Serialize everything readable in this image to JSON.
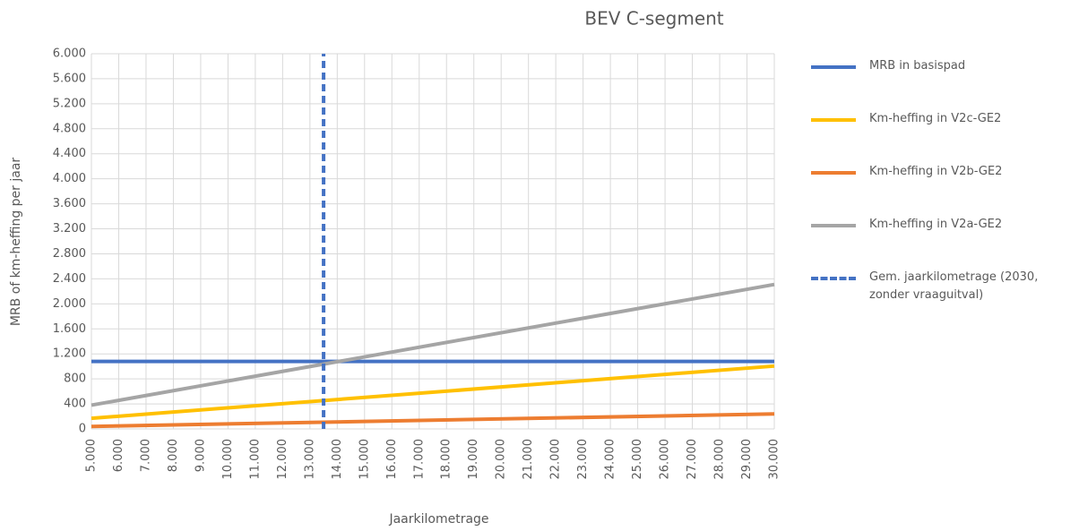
{
  "chart_data": {
    "type": "line",
    "title": "BEV C-segment",
    "xlabel": "Jaarkilometrage",
    "ylabel": "MRB of km-heffing per jaar",
    "xlim": [
      5000,
      30000
    ],
    "xticks": [
      {
        "value": 5000,
        "label": "5.000"
      },
      {
        "value": 6000,
        "label": "6.000"
      },
      {
        "value": 7000,
        "label": "7.000"
      },
      {
        "value": 8000,
        "label": "8.000"
      },
      {
        "value": 9000,
        "label": "9.000"
      },
      {
        "value": 10000,
        "label": "10.000"
      },
      {
        "value": 11000,
        "label": "11.000"
      },
      {
        "value": 12000,
        "label": "12.000"
      },
      {
        "value": 13000,
        "label": "13.000"
      },
      {
        "value": 14000,
        "label": "14.000"
      },
      {
        "value": 15000,
        "label": "15.000"
      },
      {
        "value": 16000,
        "label": "16.000"
      },
      {
        "value": 17000,
        "label": "17.000"
      },
      {
        "value": 18000,
        "label": "18.000"
      },
      {
        "value": 19000,
        "label": "19.000"
      },
      {
        "value": 20000,
        "label": "20.000"
      },
      {
        "value": 21000,
        "label": "21.000"
      },
      {
        "value": 22000,
        "label": "22.000"
      },
      {
        "value": 23000,
        "label": "23.000"
      },
      {
        "value": 24000,
        "label": "24.000"
      },
      {
        "value": 25000,
        "label": "25.000"
      },
      {
        "value": 26000,
        "label": "26.000"
      },
      {
        "value": 27000,
        "label": "27.000"
      },
      {
        "value": 28000,
        "label": "28.000"
      },
      {
        "value": 29000,
        "label": "29.000"
      },
      {
        "value": 30000,
        "label": "30.000"
      }
    ],
    "ylim": [
      0,
      6000
    ],
    "yticks": [
      0,
      400,
      800,
      {
        "value": 1200,
        "label": "1.200"
      },
      {
        "value": 1600,
        "label": "1.600"
      },
      {
        "value": 2000,
        "label": "2.000"
      },
      {
        "value": 2400,
        "label": "2.400"
      },
      {
        "value": 2800,
        "label": "2.800"
      },
      {
        "value": 3200,
        "label": "3.200"
      },
      {
        "value": 3600,
        "label": "3.600"
      },
      {
        "value": 4000,
        "label": "4.000"
      },
      {
        "value": 4400,
        "label": "4.400"
      },
      {
        "value": 4800,
        "label": "4.800"
      },
      {
        "value": 5200,
        "label": "5.200"
      },
      {
        "value": 5600,
        "label": "5.600"
      },
      {
        "value": 6000,
        "label": "6.000"
      }
    ],
    "grid": true,
    "legend": "right",
    "series": [
      {
        "name": "MRB in basispad",
        "color": "#4472c4",
        "x": [
          5000,
          30000
        ],
        "values": [
          1080,
          1080
        ]
      },
      {
        "name": "Km-heffing in V2c-GE2",
        "color": "#ffc000",
        "x": [
          5000,
          30000
        ],
        "values": [
          170,
          1005
        ]
      },
      {
        "name": "Km-heffing in V2b-GE2",
        "color": "#ed7d31",
        "x": [
          5000,
          30000
        ],
        "values": [
          40,
          240
        ]
      },
      {
        "name": "Km-heffing in V2a-GE2",
        "color": "#a5a5a5",
        "x": [
          5000,
          30000
        ],
        "values": [
          380,
          2310
        ]
      },
      {
        "name": "Gem. jaarkilometrage (2030, zonder vraaguitval)",
        "color": "#4472c4",
        "dashed": true,
        "x": [
          13500,
          13500
        ],
        "values": [
          0,
          6000
        ]
      }
    ]
  }
}
